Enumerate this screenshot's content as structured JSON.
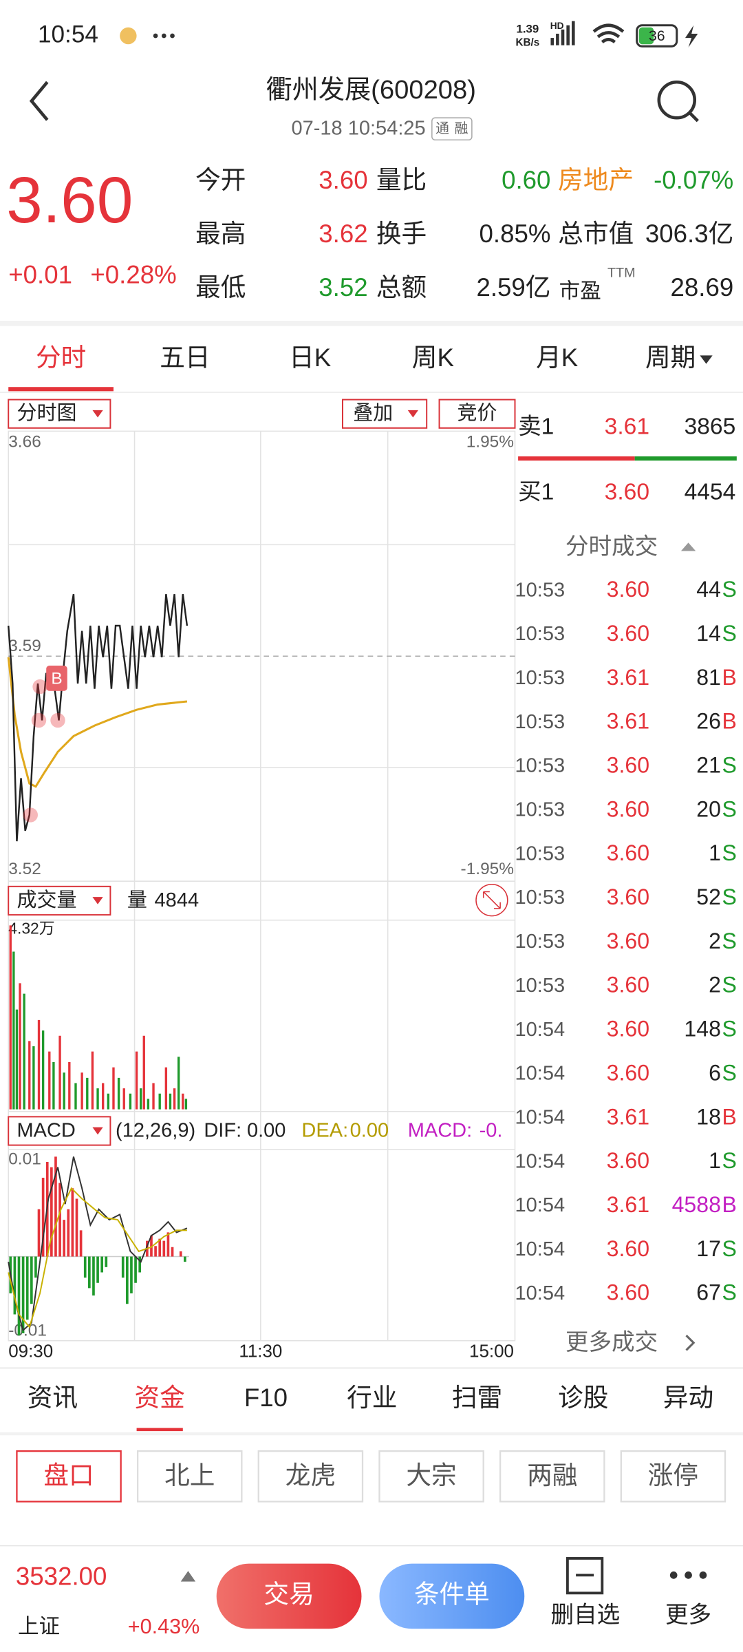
{
  "status_bar": {
    "time": "10:54",
    "speed_value": "1.39",
    "speed_unit": "KB/s",
    "network": "HD",
    "battery": "36"
  },
  "header": {
    "title": "衢州发展(600208)",
    "timestamp": "07-18 10:54:25",
    "badges": [
      "通",
      "融"
    ]
  },
  "quote": {
    "price": "3.60",
    "change": "+0.01",
    "change_pct": "+0.28%",
    "rows": [
      [
        {
          "label": "今开",
          "value": "3.60"
        },
        {
          "label": "量比",
          "value": "0.60"
        },
        {
          "label": "房地产",
          "value": "-0.07%"
        }
      ],
      [
        {
          "label": "最高",
          "value": "3.62"
        },
        {
          "label": "换手",
          "value": "0.85%"
        },
        {
          "label": "总市值",
          "value": "306.3亿"
        }
      ],
      [
        {
          "label": "最低",
          "value": "3.52"
        },
        {
          "label": "总额",
          "value": "2.59亿"
        },
        {
          "label": "市盈",
          "sup": "TTM",
          "value": "28.69"
        }
      ]
    ]
  },
  "period_tabs": {
    "active": 0,
    "items": [
      "分时",
      "五日",
      "日K",
      "周K",
      "月K",
      "周期"
    ]
  },
  "chart": {
    "mode_button": "分时图",
    "overlay_button": "叠加",
    "auction_button": "竞价",
    "price_high": "3.66",
    "pct_high": "1.95%",
    "price_mid": "3.59",
    "price_low": "3.52",
    "pct_low": "-1.95%",
    "trade_marker": "B",
    "volume": {
      "selector": "成交量",
      "label": "量",
      "value": "4844",
      "max": "4.32万"
    },
    "macd": {
      "selector": "MACD",
      "params": "(12,26,9)",
      "dif_label": "DIF:",
      "dif": "0.00",
      "dea_label": "DEA:",
      "dea": "0.00",
      "macd_label": "MACD:",
      "macd": "-0.",
      "max": "0.01",
      "min": "-0.01"
    },
    "time_axis": [
      "09:30",
      "11:30",
      "15:00"
    ]
  },
  "order_book": {
    "ask": {
      "label": "卖1",
      "price": "3.61",
      "volume": "3865"
    },
    "bid": {
      "label": "买1",
      "price": "3.60",
      "volume": "4454"
    }
  },
  "trades": {
    "title": "分时成交",
    "more": "更多成交",
    "rows": [
      {
        "time": "10:53",
        "price": "3.60",
        "volume": "44",
        "side": "S"
      },
      {
        "time": "10:53",
        "price": "3.60",
        "volume": "14",
        "side": "S"
      },
      {
        "time": "10:53",
        "price": "3.61",
        "volume": "81",
        "side": "B"
      },
      {
        "time": "10:53",
        "price": "3.61",
        "volume": "26",
        "side": "B"
      },
      {
        "time": "10:53",
        "price": "3.60",
        "volume": "21",
        "side": "S"
      },
      {
        "time": "10:53",
        "price": "3.60",
        "volume": "20",
        "side": "S"
      },
      {
        "time": "10:53",
        "price": "3.60",
        "volume": "1",
        "side": "S"
      },
      {
        "time": "10:53",
        "price": "3.60",
        "volume": "52",
        "side": "S"
      },
      {
        "time": "10:53",
        "price": "3.60",
        "volume": "2",
        "side": "S"
      },
      {
        "time": "10:53",
        "price": "3.60",
        "volume": "2",
        "side": "S"
      },
      {
        "time": "10:54",
        "price": "3.60",
        "volume": "148",
        "side": "S"
      },
      {
        "time": "10:54",
        "price": "3.60",
        "volume": "6",
        "side": "S"
      },
      {
        "time": "10:54",
        "price": "3.61",
        "volume": "18",
        "side": "B"
      },
      {
        "time": "10:54",
        "price": "3.60",
        "volume": "1",
        "side": "S"
      },
      {
        "time": "10:54",
        "price": "3.61",
        "volume": "4588",
        "side": "B",
        "color": "#c21fc2"
      },
      {
        "time": "10:54",
        "price": "3.60",
        "volume": "17",
        "side": "S"
      },
      {
        "time": "10:54",
        "price": "3.60",
        "volume": "67",
        "side": "S"
      }
    ]
  },
  "info_tabs": {
    "active": 1,
    "items": [
      "资讯",
      "资金",
      "F10",
      "行业",
      "扫雷",
      "诊股",
      "异动"
    ]
  },
  "sub_tabs": {
    "active": 0,
    "items": [
      "盘口",
      "北上",
      "龙虎",
      "大宗",
      "两融",
      "涨停"
    ]
  },
  "bottom_bar": {
    "index_value": "3532.00",
    "index_name": "上证",
    "index_change": "+0.43%",
    "trade_button": "交易",
    "condition_button": "条件单",
    "watchlist": "删自选",
    "more": "更多"
  }
}
